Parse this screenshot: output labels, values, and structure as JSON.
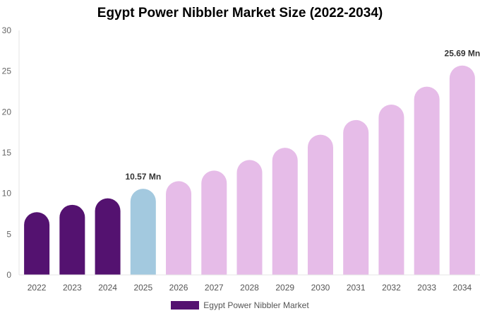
{
  "chart_data": {
    "type": "bar",
    "title": "Egypt Power Nibbler Market Size (2022-2034)",
    "xlabel": "",
    "ylabel": "",
    "categories": [
      "2022",
      "2023",
      "2024",
      "2025",
      "2026",
      "2027",
      "2028",
      "2029",
      "2030",
      "2031",
      "2032",
      "2033",
      "2034"
    ],
    "series": [
      {
        "name": "Egypt Power Nibbler Market",
        "values": [
          7.7,
          8.6,
          9.4,
          10.57,
          11.5,
          12.8,
          14.1,
          15.6,
          17.2,
          19.0,
          20.9,
          23.1,
          25.69
        ]
      }
    ],
    "bar_colors": [
      "#541270",
      "#541270",
      "#541270",
      "#a3c9df",
      "#e6bce8",
      "#e6bce8",
      "#e6bce8",
      "#e6bce8",
      "#e6bce8",
      "#e6bce8",
      "#e6bce8",
      "#e6bce8",
      "#e6bce8"
    ],
    "ylim": [
      0,
      30
    ],
    "yticks": [
      "0",
      "5",
      "10",
      "15",
      "20",
      "25",
      "30"
    ],
    "annotations": [
      {
        "category": "2025",
        "label": "10.57 Mn"
      },
      {
        "category": "2034",
        "label": "25.69 Mn"
      }
    ],
    "grid": false,
    "legend_position": "bottom-center"
  },
  "legend": {
    "label": "Egypt Power Nibbler Market",
    "color": "#541270"
  }
}
